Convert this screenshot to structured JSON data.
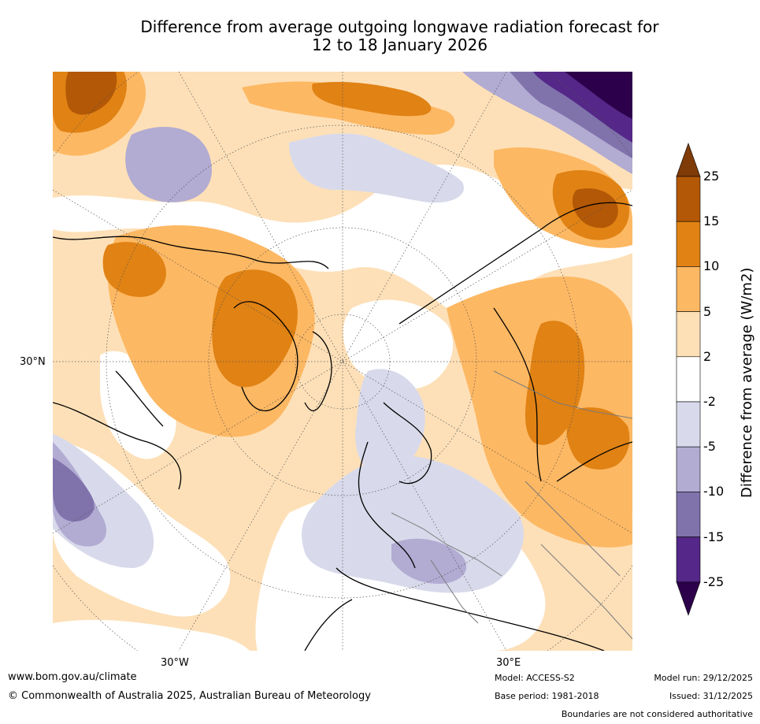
{
  "title": {
    "line1": "Difference from average outgoing longwave radiation forecast for",
    "line2": "12 to 18 January 2026"
  },
  "map": {
    "projection": "polar stereographic (north)",
    "axis_labels": {
      "lat_30n": "30°N",
      "lon_30w": "30°W",
      "lon_30e": "30°E"
    }
  },
  "colorbar": {
    "title": "Difference from average (W/m2)",
    "ticks": [
      "25",
      "15",
      "10",
      "5",
      "2",
      "-2",
      "-5",
      "-10",
      "-15",
      "-25"
    ],
    "colors": {
      "above_25": "#7f3b08",
      "15_25": "#b35806",
      "10_15": "#e08214",
      "5_10": "#fdb863",
      "2_5": "#fee0b6",
      "neutral": "#ffffff",
      "neg2_neg5": "#d8daeb",
      "neg5_neg10": "#b2abd2",
      "neg10_neg15": "#8073ac",
      "neg15_neg25": "#542788",
      "below_neg25": "#2d004b"
    }
  },
  "footer": {
    "website": "www.bom.gov.au/climate",
    "copyright": "© Commonwealth of Australia 2025, Australian Bureau of Meteorology",
    "model": "Model: ACCESS-S2",
    "base_period": "Base period: 1981-2018",
    "model_run": "Model run: 29/12/2025",
    "issued": "Issued: 31/12/2025",
    "disclaimer": "Boundaries are not considered authoritative"
  }
}
